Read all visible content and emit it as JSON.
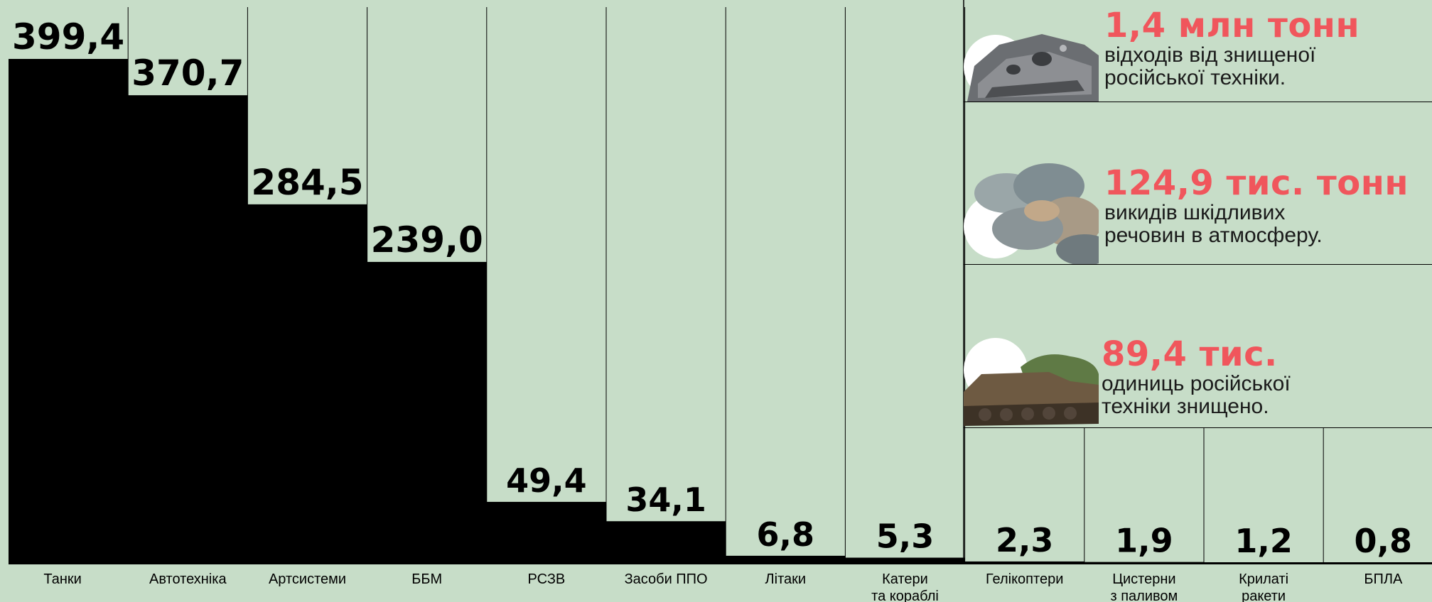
{
  "chart_data": {
    "type": "bar",
    "categories": [
      "Танки",
      "Автотехніка",
      "Артсистеми",
      "ББМ",
      "РСЗВ",
      "Засоби ППО",
      "Літаки",
      "Катери\nта кораблі",
      "Гелікоптери",
      "Цистерни\nз паливом",
      "Крилаті\nракети",
      "БПЛА"
    ],
    "values": [
      399.4,
      370.7,
      284.5,
      239.0,
      49.4,
      34.1,
      6.8,
      5.3,
      2.3,
      1.9,
      1.2,
      0.8
    ],
    "value_labels": [
      "399,4",
      "370,7",
      "284,5",
      "239,0",
      "49,4",
      "34,1",
      "6,8",
      "5,3",
      "2,3",
      "1,9",
      "1,2",
      "0,8"
    ],
    "bar_color": "#000000",
    "background": "#c7ddc8",
    "grid": false
  },
  "stats": [
    {
      "value": "1,4 млн тонн",
      "desc_line1": "відходів від знищеної",
      "desc_line2": "російської техніки.",
      "image": "destroyed-tank-turret-photo"
    },
    {
      "value": "124,9 тис. тонн",
      "desc_line1": "викидів шкідливих",
      "desc_line2": "речовин в атмосферу.",
      "image": "smoke-cloud-photo"
    },
    {
      "value": "89,4 тис.",
      "desc_line1": "одиниць російської",
      "desc_line2": "техніки знищено.",
      "image": "destroyed-armored-vehicle-photo"
    }
  ],
  "colors": {
    "accent": "#f0565c",
    "bar": "#000000",
    "text": "#1a1a1a"
  }
}
